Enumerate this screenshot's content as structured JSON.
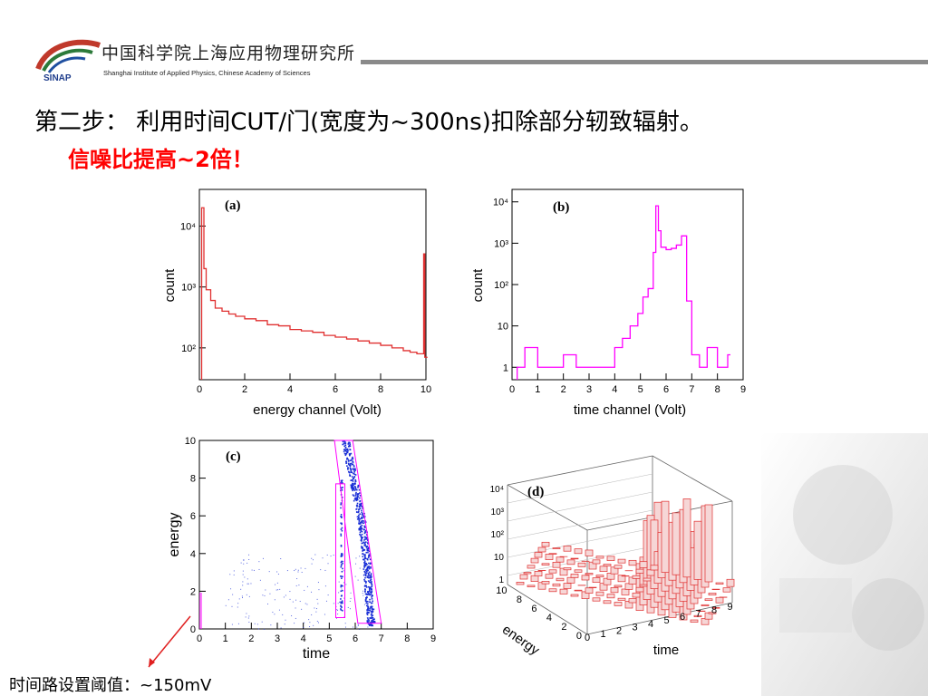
{
  "header": {
    "org_cn": "中国科学院上海应用物理研究所",
    "org_en": "Shanghai Institute of Applied Physics, Chinese Academy of Sciences",
    "logo_text": "SINAP"
  },
  "slide": {
    "step_text": "第二步： 利用时间CUT/门(宽度为~300ns)扣除部分轫致辐射。",
    "ratio_text": "信噪比提高~2倍！",
    "footnote": "时间路设置阈值：~150mV"
  },
  "colors": {
    "red_hist": "#e03030",
    "magenta_hist": "#ff00ff",
    "blue_scatter": "#1a2fd6",
    "title_red": "#ff0000",
    "rule_gray": "#8a8a8a"
  },
  "chart_data": [
    {
      "type": "line",
      "panel_label": "(a)",
      "xlabel": "energy channel (Volt)",
      "ylabel": "count",
      "log_y": true,
      "xlim": [
        0,
        10
      ],
      "ylim": [
        30,
        40000
      ],
      "x_ticks": [
        "0",
        "2",
        "4",
        "6",
        "8",
        "10"
      ],
      "y_ticks": [
        "10^2",
        "10^3",
        "10^4"
      ],
      "series": [
        {
          "x": [
            0.1,
            0.2,
            0.3,
            0.5,
            0.7,
            1.0,
            1.3,
            1.6,
            2.0,
            2.5,
            3.0,
            3.5,
            4.0,
            4.5,
            5.0,
            5.5,
            6.0,
            6.5,
            7.0,
            7.5,
            8.0,
            8.5,
            9.0,
            9.3,
            9.6,
            9.9,
            9.95
          ],
          "values": [
            20000,
            2000,
            900,
            600,
            450,
            400,
            360,
            330,
            300,
            280,
            240,
            230,
            200,
            190,
            180,
            160,
            150,
            140,
            130,
            120,
            110,
            100,
            90,
            85,
            80,
            3500,
            70
          ]
        }
      ]
    },
    {
      "type": "line",
      "panel_label": "(b)",
      "xlabel": "time channel (Volt)",
      "ylabel": "count",
      "log_y": true,
      "xlim": [
        0,
        9
      ],
      "ylim": [
        0.5,
        20000
      ],
      "x_ticks": [
        "0",
        "1",
        "2",
        "3",
        "4",
        "5",
        "6",
        "7",
        "8",
        "9"
      ],
      "y_ticks": [
        "1",
        "10",
        "10^2",
        "10^3",
        "10^4"
      ],
      "series": [
        {
          "x": [
            0.2,
            0.5,
            1.0,
            1.5,
            2.0,
            2.5,
            3.0,
            3.5,
            4.0,
            4.3,
            4.6,
            4.9,
            5.1,
            5.3,
            5.5,
            5.6,
            5.7,
            5.8,
            6.0,
            6.2,
            6.4,
            6.6,
            6.8,
            7.0,
            7.3,
            7.6,
            8.0,
            8.4
          ],
          "values": [
            1,
            3,
            1,
            1,
            2,
            1,
            1,
            1,
            3,
            5,
            10,
            20,
            50,
            80,
            600,
            8000,
            2000,
            800,
            700,
            750,
            900,
            1500,
            40,
            2,
            1,
            3,
            1,
            2
          ]
        }
      ]
    },
    {
      "type": "scatter",
      "panel_label": "(c)",
      "xlabel": "time",
      "ylabel": "energy",
      "xlim": [
        0,
        9
      ],
      "ylim": [
        0,
        10
      ],
      "x_ticks": [
        "0",
        "1",
        "2",
        "3",
        "4",
        "5",
        "6",
        "7",
        "8",
        "9"
      ],
      "y_ticks": [
        "0",
        "2",
        "4",
        "6",
        "8",
        "10"
      ],
      "band_points": [
        [
          5.6,
          10
        ],
        [
          5.75,
          9
        ],
        [
          5.9,
          8
        ],
        [
          6.05,
          7
        ],
        [
          6.2,
          6
        ],
        [
          6.3,
          5
        ],
        [
          6.4,
          4
        ],
        [
          6.45,
          3
        ],
        [
          6.5,
          2
        ],
        [
          6.55,
          1
        ],
        [
          6.6,
          0.2
        ]
      ]
    },
    {
      "type": "heatmap",
      "panel_label": "(d)",
      "xlabel": "time",
      "ylabel": "energy",
      "log_z": true,
      "x_ticks": [
        "0",
        "1",
        "2",
        "3",
        "4",
        "5",
        "6",
        "7",
        "8",
        "9"
      ],
      "y_ticks": [
        "0",
        "2",
        "4",
        "6",
        "8",
        "10"
      ],
      "z_ticks": [
        "1",
        "10",
        "10^2",
        "10^3",
        "10^4"
      ]
    }
  ]
}
